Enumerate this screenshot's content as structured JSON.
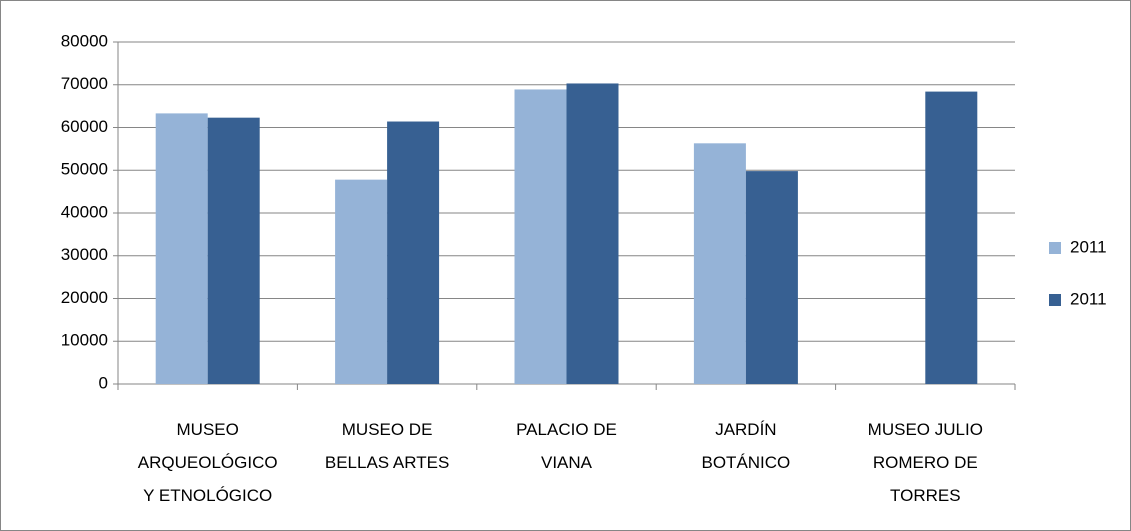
{
  "chart_data": {
    "type": "bar",
    "categories": [
      "MUSEO ARQUEOLÓGICO Y ETNOLÓGICO",
      "MUSEO DE BELLAS ARTES",
      "PALACIO DE VIANA",
      "JARDÍN BOTÁNICO",
      "MUSEO JULIO ROMERO DE TORRES"
    ],
    "series": [
      {
        "name": "2011",
        "color": "#95b3d7",
        "values": [
          63300,
          47800,
          68900,
          56300,
          null
        ]
      },
      {
        "name": "2011",
        "color": "#376092",
        "values": [
          62300,
          61400,
          70300,
          49800,
          68400
        ]
      }
    ],
    "ylim": [
      0,
      80000
    ],
    "yticks": [
      0,
      10000,
      20000,
      30000,
      40000,
      50000,
      60000,
      70000,
      80000
    ],
    "grid": true,
    "legend": "right"
  }
}
